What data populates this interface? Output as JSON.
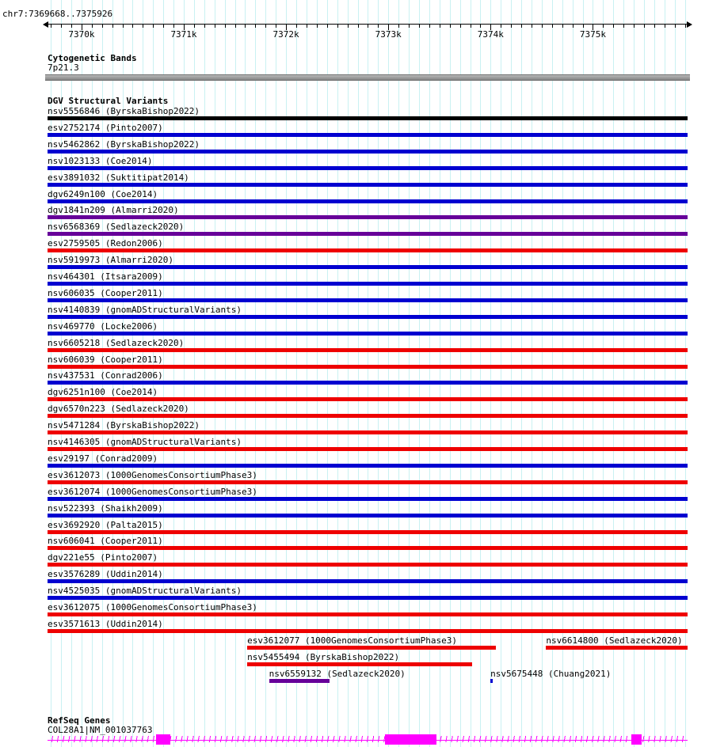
{
  "header": {
    "coordinates": "chr7:7369668..7375926"
  },
  "ruler": {
    "start": 7369668,
    "end": 7375926,
    "minor_step": 100,
    "major_ticks": [
      {
        "pos": 7370000,
        "label": "7370k"
      },
      {
        "pos": 7371000,
        "label": "7371k"
      },
      {
        "pos": 7372000,
        "label": "7372k"
      },
      {
        "pos": 7373000,
        "label": "7373k"
      },
      {
        "pos": 7374000,
        "label": "7374k"
      },
      {
        "pos": 7375000,
        "label": "7375k"
      }
    ]
  },
  "cytobands": {
    "title": "Cytogenetic Bands",
    "band": {
      "label": "7p21.3",
      "color": "#9a9a9a"
    }
  },
  "dgv": {
    "title": "DGV Structural Variants",
    "colors": {
      "gain_blue": "#0000d0",
      "loss_red": "#ee0000",
      "complex_black": "#000000",
      "mixed_purple": "#660099",
      "grid_cyan": "#c9f1f2"
    },
    "variants": [
      {
        "label": "nsv5556846 (ByrskaBishop2022)",
        "color": "#000000",
        "row": 0,
        "start": 0,
        "end": 1
      },
      {
        "label": "esv2752174 (Pinto2007)",
        "color": "#0000d0",
        "row": 1,
        "start": 0,
        "end": 1
      },
      {
        "label": "nsv5462862 (ByrskaBishop2022)",
        "color": "#0000d0",
        "row": 2,
        "start": 0,
        "end": 1
      },
      {
        "label": "nsv1023133 (Coe2014)",
        "color": "#0000d0",
        "row": 3,
        "start": 0,
        "end": 1
      },
      {
        "label": "esv3891032 (Suktitipat2014)",
        "color": "#0000d0",
        "row": 4,
        "start": 0,
        "end": 1
      },
      {
        "label": "dgv6249n100 (Coe2014)",
        "color": "#0000d0",
        "row": 5,
        "start": 0,
        "end": 1
      },
      {
        "label": "dgv1841n209 (Almarri2020)",
        "color": "#660099",
        "row": 6,
        "start": 0,
        "end": 1
      },
      {
        "label": "nsv6568369 (Sedlazeck2020)",
        "color": "#660099",
        "row": 7,
        "start": 0,
        "end": 1
      },
      {
        "label": "esv2759505 (Redon2006)",
        "color": "#ee0000",
        "row": 8,
        "start": 0,
        "end": 1
      },
      {
        "label": "nsv5919973 (Almarri2020)",
        "color": "#0000d0",
        "row": 9,
        "start": 0,
        "end": 1
      },
      {
        "label": "nsv464301 (Itsara2009)",
        "color": "#0000d0",
        "row": 10,
        "start": 0,
        "end": 1
      },
      {
        "label": "nsv606035 (Cooper2011)",
        "color": "#0000d0",
        "row": 11,
        "start": 0,
        "end": 1
      },
      {
        "label": "nsv4140839 (gnomADStructuralVariants)",
        "color": "#0000d0",
        "row": 12,
        "start": 0,
        "end": 1
      },
      {
        "label": "nsv469770 (Locke2006)",
        "color": "#0000d0",
        "row": 13,
        "start": 0,
        "end": 1
      },
      {
        "label": "nsv6605218 (Sedlazeck2020)",
        "color": "#ee0000",
        "row": 14,
        "start": 0,
        "end": 1
      },
      {
        "label": "nsv606039 (Cooper2011)",
        "color": "#ee0000",
        "row": 15,
        "start": 0,
        "end": 1
      },
      {
        "label": "nsv437531 (Conrad2006)",
        "color": "#0000d0",
        "row": 16,
        "start": 0,
        "end": 1
      },
      {
        "label": "dgv6251n100 (Coe2014)",
        "color": "#ee0000",
        "row": 17,
        "start": 0,
        "end": 1
      },
      {
        "label": "dgv6570n223 (Sedlazeck2020)",
        "color": "#ee0000",
        "row": 18,
        "start": 0,
        "end": 1
      },
      {
        "label": "nsv5471284 (ByrskaBishop2022)",
        "color": "#ee0000",
        "row": 19,
        "start": 0,
        "end": 1
      },
      {
        "label": "nsv4146305 (gnomADStructuralVariants)",
        "color": "#ee0000",
        "row": 20,
        "start": 0,
        "end": 1
      },
      {
        "label": "esv29197 (Conrad2009)",
        "color": "#0000d0",
        "row": 21,
        "start": 0,
        "end": 1
      },
      {
        "label": "esv3612073 (1000GenomesConsortiumPhase3)",
        "color": "#ee0000",
        "row": 22,
        "start": 0,
        "end": 1
      },
      {
        "label": "esv3612074 (1000GenomesConsortiumPhase3)",
        "color": "#0000d0",
        "row": 23,
        "start": 0,
        "end": 1
      },
      {
        "label": "nsv522393 (Shaikh2009)",
        "color": "#0000d0",
        "row": 24,
        "start": 0,
        "end": 1
      },
      {
        "label": "esv3692920 (Palta2015)",
        "color": "#ee0000",
        "row": 25,
        "start": 0,
        "end": 1
      },
      {
        "label": "nsv606041 (Cooper2011)",
        "color": "#ee0000",
        "row": 26,
        "start": 0,
        "end": 1
      },
      {
        "label": "dgv221e55 (Pinto2007)",
        "color": "#ee0000",
        "row": 27,
        "start": 0,
        "end": 1
      },
      {
        "label": "esv3576289 (Uddin2014)",
        "color": "#0000d0",
        "row": 28,
        "start": 0,
        "end": 1
      },
      {
        "label": "nsv4525035 (gnomADStructuralVariants)",
        "color": "#0000d0",
        "row": 29,
        "start": 0,
        "end": 1
      },
      {
        "label": "esv3612075 (1000GenomesConsortiumPhase3)",
        "color": "#ee0000",
        "row": 30,
        "start": 0,
        "end": 1
      },
      {
        "label": "esv3571613 (Uddin2014)",
        "color": "#ee0000",
        "row": 31,
        "start": 0,
        "end": 1
      },
      {
        "label": "esv3612077 (1000GenomesConsortiumPhase3)",
        "color": "#ee0000",
        "row": 32,
        "start": 0.312,
        "end": 0.7
      },
      {
        "label": "nsv6614800 (Sedlazeck2020)",
        "color": "#ee0000",
        "row": 32,
        "start": 0.779,
        "end": 1.0
      },
      {
        "label": "nsv5455494 (ByrskaBishop2022)",
        "color": "#ee0000",
        "row": 33,
        "start": 0.312,
        "end": 0.664
      },
      {
        "label": "nsv6559132 (Sedlazeck2020)",
        "color": "#660099",
        "row": 34,
        "start": 0.346,
        "end": 0.44
      },
      {
        "label": "nsv5675448 (Chuang2021)",
        "color": "#0000d0",
        "row": 34,
        "start": 0.692,
        "end": 0.696
      }
    ]
  },
  "refseq": {
    "title": "RefSeq Genes",
    "gene": {
      "label": "COL28A1|NM_001037763",
      "color": "#ff00ff",
      "exons": [
        [
          0.17,
          0.192
        ],
        [
          0.527,
          0.608
        ],
        [
          0.912,
          0.928
        ]
      ]
    }
  }
}
